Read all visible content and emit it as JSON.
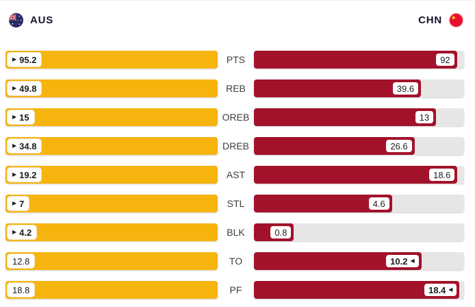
{
  "header": {
    "home_code": "AUS",
    "away_code": "CHN"
  },
  "icons": {
    "home_flag": "aus-flag-icon",
    "away_flag": "chn-flag-icon",
    "leader_arrow_home": "▶",
    "leader_arrow_away": "◀"
  },
  "colors": {
    "home_bar": "#F6B40E",
    "away_bar": "#A2122B",
    "track": "#E7E6E4",
    "pill_bg": "#FFFFFF",
    "value_text": "#1B1B1B",
    "label_text": "#3D3D3D",
    "header_text": "#14142B"
  },
  "chart_data": {
    "type": "bar",
    "orientation": "horizontal-mirrored",
    "categories": [
      "PTS",
      "REB",
      "OREB",
      "DREB",
      "AST",
      "STL",
      "BLK",
      "TO",
      "PF"
    ],
    "series": [
      {
        "name": "AUS",
        "color": "#F6B40E",
        "values": [
          95.2,
          49.8,
          15,
          34.8,
          19.2,
          7,
          4.2,
          12.8,
          18.8
        ]
      },
      {
        "name": "CHN",
        "color": "#A2122B",
        "values": [
          92,
          39.6,
          13,
          26.6,
          18.6,
          4.6,
          0.8,
          10.2,
          18.4
        ]
      }
    ],
    "value_labels": {
      "AUS": [
        "95.2",
        "49.8",
        "15",
        "34.8",
        "19.2",
        "7",
        "4.2",
        "12.8",
        "18.8"
      ],
      "CHN": [
        "92",
        "39.6",
        "13",
        "26.6",
        "18.6",
        "4.6",
        "0.8",
        "10.2",
        "18.4"
      ]
    },
    "leaders": [
      "AUS",
      "AUS",
      "AUS",
      "AUS",
      "AUS",
      "AUS",
      "AUS",
      "CHN",
      "CHN"
    ],
    "scaling": "bar width = value / max(row values); leader value shown bold with arrow pointing into bar",
    "legend_position": "top (team headers with flags)",
    "grid": false
  }
}
